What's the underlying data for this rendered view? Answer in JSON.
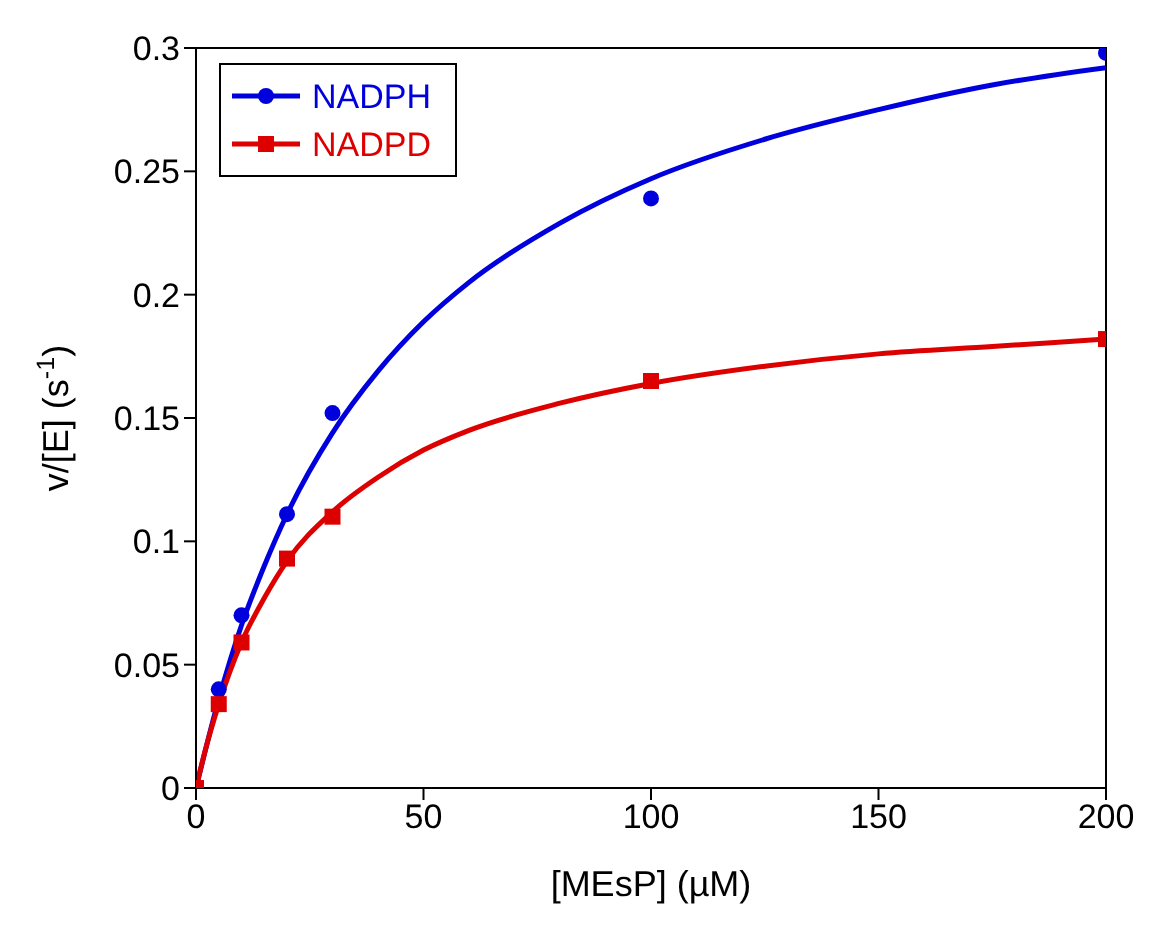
{
  "chart_data": {
    "type": "scatter",
    "xlabel": "[MEsP] (µM)",
    "ylabel": "v/[E] (s$^{-1}$)",
    "xlim": [
      0,
      200
    ],
    "xticks": [
      0,
      50,
      100,
      150,
      200
    ],
    "ylim": [
      0,
      0.3
    ],
    "yticks": [
      0,
      0.05,
      0.1,
      0.15,
      0.2,
      0.25,
      0.3
    ],
    "grid": false,
    "legend": "top left",
    "series": [
      {
        "name": "NADPH",
        "marker": "circle",
        "color": "#0000dd",
        "x": [
          5,
          10,
          20,
          30,
          100,
          200
        ],
        "values": [
          0.04,
          0.07,
          0.111,
          0.152,
          0.239,
          0.298
        ]
      },
      {
        "name": "NADPD",
        "marker": "square",
        "color": "#dd0000",
        "x": [
          0,
          5,
          10,
          20,
          30,
          100,
          200
        ],
        "values": [
          0,
          0.034,
          0.059,
          0.093,
          0.11,
          0.165,
          0.182
        ]
      },
      {
        "type": "line",
        "marker": "none",
        "color": "#0000dd",
        "x": [
          0,
          5,
          10,
          15,
          20,
          30,
          40,
          50,
          60,
          80,
          100,
          125,
          150,
          175,
          200
        ],
        "values": [
          0,
          0.036,
          0.066,
          0.09,
          0.111,
          0.144,
          0.169,
          0.189,
          0.205,
          0.229,
          0.247,
          0.263,
          0.275,
          0.285,
          0.292
        ]
      },
      {
        "type": "line",
        "marker": "none",
        "color": "#dd0000",
        "x": [
          0,
          2,
          5,
          10,
          15,
          20,
          30,
          40,
          50,
          60,
          80,
          100,
          125,
          150,
          175,
          200
        ],
        "values": [
          0,
          0.015,
          0.034,
          0.059,
          0.077,
          0.092,
          0.112,
          0.126,
          0.137,
          0.145,
          0.156,
          0.164,
          0.171,
          0.176,
          0.179,
          0.182
        ]
      }
    ]
  }
}
